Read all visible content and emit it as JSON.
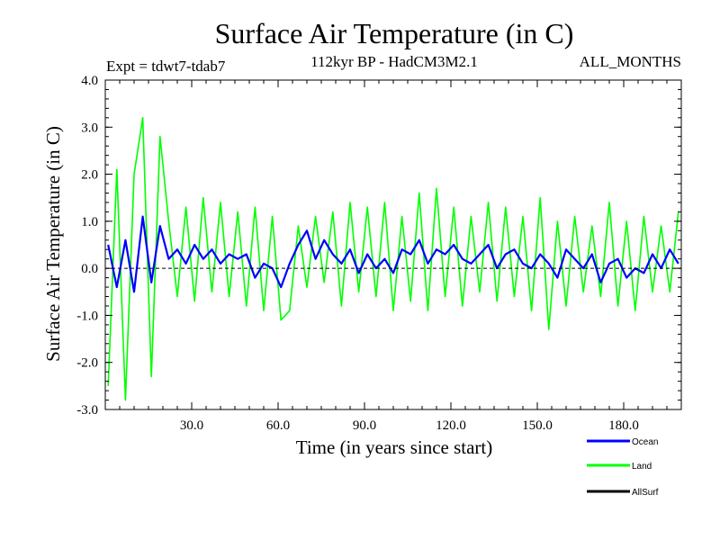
{
  "chart_data": {
    "type": "line",
    "title": "Surface Air Temperature (in C)",
    "subtitle": "112kyr BP - HadCM3M2.1",
    "experiment": "Expt = tdwt7-tdab7",
    "period": "ALL_MONTHS",
    "xlabel": "Time (in years since start)",
    "ylabel": "Surface Air Temperature (in C)",
    "xlim": [
      0,
      200
    ],
    "ylim": [
      -3.0,
      4.0
    ],
    "xticks": [
      30,
      60,
      90,
      120,
      150,
      180
    ],
    "xtick_labels": [
      "30.0",
      "60.0",
      "90.0",
      "120.0",
      "150.0",
      "180.0"
    ],
    "yticks": [
      -3,
      -2,
      -1,
      0,
      1,
      2,
      3,
      4
    ],
    "ytick_labels": [
      "-3.0",
      "-2.0",
      "-1.0",
      "0.0",
      "1.0",
      "2.0",
      "3.0",
      "4.0"
    ],
    "reference_line": 0.0,
    "legend_position": "bottom-right, below plot",
    "series": [
      {
        "name": "Land",
        "color": "#00ff00",
        "x": [
          1,
          4,
          7,
          10,
          13,
          16,
          19,
          22,
          25,
          28,
          31,
          34,
          37,
          40,
          43,
          46,
          49,
          52,
          55,
          58,
          61,
          64,
          67,
          70,
          73,
          76,
          79,
          82,
          85,
          88,
          91,
          94,
          97,
          100,
          103,
          106,
          109,
          112,
          115,
          118,
          121,
          124,
          127,
          130,
          133,
          136,
          139,
          142,
          145,
          148,
          151,
          154,
          157,
          160,
          163,
          166,
          169,
          172,
          175,
          178,
          181,
          184,
          187,
          190,
          193,
          196,
          199
        ],
        "values": [
          -2.5,
          2.1,
          -2.8,
          2.0,
          3.2,
          -2.3,
          2.8,
          1.0,
          -0.6,
          1.3,
          -0.7,
          1.5,
          -0.5,
          1.4,
          -0.6,
          1.2,
          -0.8,
          1.3,
          -0.9,
          1.1,
          -1.1,
          -0.9,
          0.9,
          -0.4,
          1.1,
          -0.3,
          1.2,
          -0.8,
          1.4,
          -0.5,
          1.3,
          -0.6,
          1.4,
          -0.9,
          1.1,
          -0.7,
          1.6,
          -0.9,
          1.7,
          -0.6,
          1.3,
          -0.8,
          1.1,
          -0.5,
          1.4,
          -0.7,
          1.3,
          -0.6,
          1.1,
          -0.9,
          1.5,
          -1.3,
          1.0,
          -0.8,
          1.1,
          -0.5,
          0.9,
          -0.6,
          1.4,
          -0.8,
          1.0,
          -0.9,
          1.1,
          -0.5,
          0.9,
          -0.5,
          1.2
        ]
      },
      {
        "name": "Ocean",
        "color": "#0000ff",
        "x": [
          1,
          4,
          7,
          10,
          13,
          16,
          19,
          22,
          25,
          28,
          31,
          34,
          37,
          40,
          43,
          46,
          49,
          52,
          55,
          58,
          61,
          64,
          67,
          70,
          73,
          76,
          79,
          82,
          85,
          88,
          91,
          94,
          97,
          100,
          103,
          106,
          109,
          112,
          115,
          118,
          121,
          124,
          127,
          130,
          133,
          136,
          139,
          142,
          145,
          148,
          151,
          154,
          157,
          160,
          163,
          166,
          169,
          172,
          175,
          178,
          181,
          184,
          187,
          190,
          193,
          196,
          199
        ],
        "values": [
          0.5,
          -0.4,
          0.6,
          -0.5,
          1.1,
          -0.3,
          0.9,
          0.2,
          0.4,
          0.1,
          0.5,
          0.2,
          0.4,
          0.1,
          0.3,
          0.2,
          0.3,
          -0.2,
          0.1,
          0.0,
          -0.4,
          0.1,
          0.5,
          0.8,
          0.2,
          0.6,
          0.3,
          0.1,
          0.4,
          -0.1,
          0.3,
          0.0,
          0.2,
          -0.1,
          0.4,
          0.3,
          0.6,
          0.1,
          0.4,
          0.3,
          0.5,
          0.2,
          0.1,
          0.3,
          0.5,
          0.0,
          0.3,
          0.4,
          0.1,
          0.0,
          0.3,
          0.1,
          -0.2,
          0.4,
          0.2,
          0.0,
          0.3,
          -0.3,
          0.1,
          0.2,
          -0.2,
          0.0,
          -0.1,
          0.3,
          0.0,
          0.4,
          0.1
        ]
      },
      {
        "name": "AllSurf",
        "color": "#000000",
        "x": [],
        "values": []
      }
    ]
  }
}
